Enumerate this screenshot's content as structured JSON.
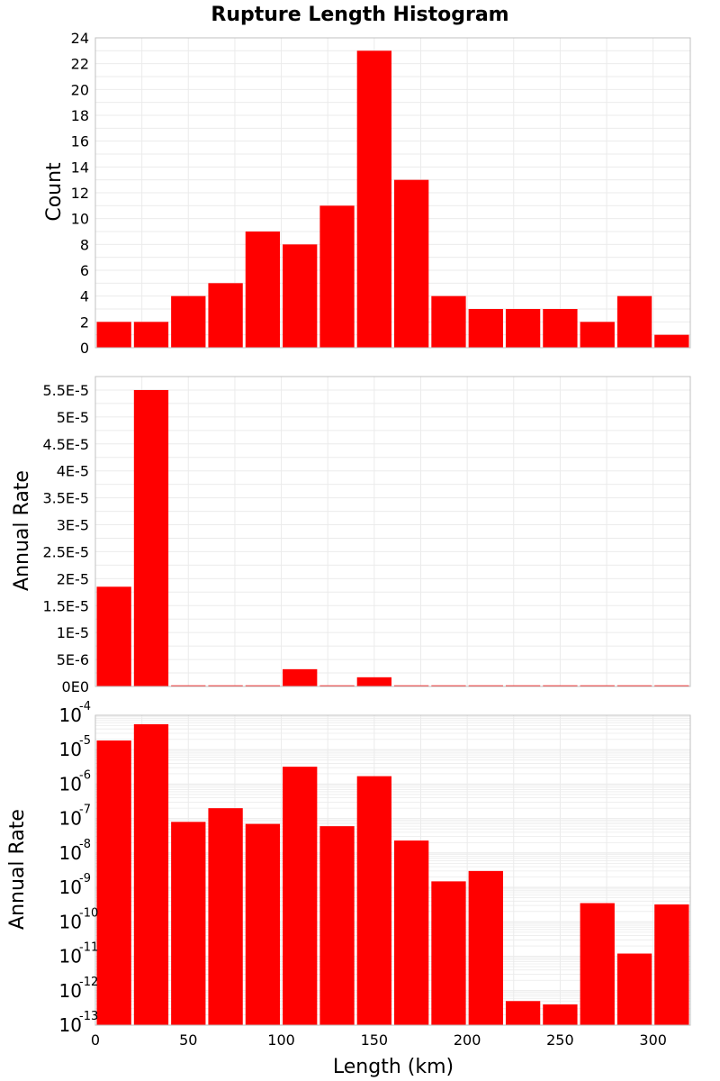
{
  "title": "Rupture Length Histogram",
  "colors": {
    "bar": "#ff0000",
    "grid": "#ebebeb",
    "frame": "#c0c0c0"
  },
  "chart_data": [
    {
      "type": "bar",
      "title": "Rupture Length Histogram",
      "xlabel": "",
      "ylabel": "Count",
      "xlim": [
        0,
        320
      ],
      "ylim": [
        0,
        24
      ],
      "bin_width": 20,
      "x": [
        10,
        30,
        50,
        70,
        90,
        110,
        130,
        150,
        170,
        190,
        210,
        230,
        250,
        270,
        290,
        310
      ],
      "values": [
        2,
        2,
        4,
        5,
        9,
        8,
        11,
        23,
        13,
        4,
        3,
        3,
        3,
        2,
        4,
        1
      ],
      "yticks": [
        0,
        2,
        4,
        6,
        8,
        10,
        12,
        14,
        16,
        18,
        20,
        22,
        24
      ],
      "ytick_labels": [
        "0",
        "2",
        "4",
        "6",
        "8",
        "10",
        "12",
        "14",
        "16",
        "18",
        "20",
        "22",
        "24"
      ]
    },
    {
      "type": "bar",
      "xlabel": "",
      "ylabel": "Annual Rate",
      "xlim": [
        0,
        320
      ],
      "ylim": [
        0,
        5.75e-05
      ],
      "bin_width": 20,
      "x": [
        10,
        30,
        50,
        70,
        90,
        110,
        130,
        150,
        170,
        190,
        210,
        230,
        250,
        270,
        290,
        310
      ],
      "values": [
        1.85e-05,
        5.5e-05,
        8e-08,
        2e-07,
        7e-08,
        3.2e-06,
        6e-08,
        1.7e-06,
        2.3e-08,
        1.5e-09,
        3e-09,
        5e-13,
        4e-13,
        3.5e-10,
        1.2e-11,
        3.2e-10
      ],
      "yticks": [
        0,
        5e-06,
        1e-05,
        1.5e-05,
        2e-05,
        2.5e-05,
        3e-05,
        3.5e-05,
        4e-05,
        4.5e-05,
        5e-05,
        5.5e-05
      ],
      "ytick_labels": [
        "0E0",
        "5E-6",
        "1E-5",
        "1.5E-5",
        "2E-5",
        "2.5E-5",
        "3E-5",
        "3.5E-5",
        "4E-5",
        "4.5E-5",
        "5E-5",
        "5.5E-5"
      ]
    },
    {
      "type": "bar",
      "yscale": "log",
      "xlabel": "Length (km)",
      "ylabel": "Annual Rate",
      "xlim": [
        0,
        320
      ],
      "ylim": [
        1e-13,
        0.0001
      ],
      "bin_width": 20,
      "x": [
        10,
        30,
        50,
        70,
        90,
        110,
        130,
        150,
        170,
        190,
        210,
        230,
        250,
        270,
        290,
        310
      ],
      "values": [
        1.85e-05,
        5.5e-05,
        8e-08,
        2e-07,
        7e-08,
        3.2e-06,
        6e-08,
        1.7e-06,
        2.3e-08,
        1.5e-09,
        3e-09,
        5e-13,
        4e-13,
        3.5e-10,
        1.2e-11,
        3.2e-10
      ],
      "ytick_exponents": [
        "-4",
        "-5",
        "-6",
        "-7",
        "-8",
        "-9",
        "-10",
        "-11",
        "-12",
        "-13"
      ],
      "ytick_base": "10",
      "xticks": [
        0,
        50,
        100,
        150,
        200,
        250,
        300
      ],
      "xtick_labels": [
        "0",
        "50",
        "100",
        "150",
        "200",
        "250",
        "300"
      ]
    }
  ]
}
